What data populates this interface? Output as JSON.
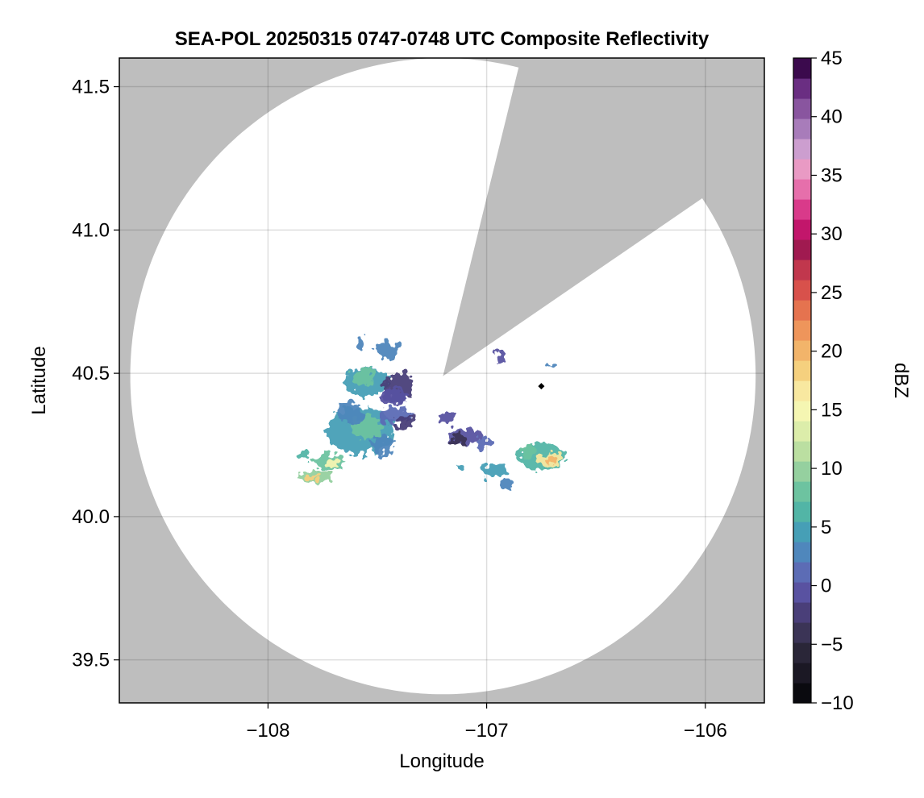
{
  "chart_data": {
    "type": "heatmap",
    "title": "SEA-POL 20250315 0747-0748 UTC Composite Reflectivity",
    "xlabel": "Longitude",
    "ylabel": "Latitude",
    "xlim": [
      -108.68,
      -105.73
    ],
    "ylim": [
      39.35,
      41.6
    ],
    "xticks": [
      -108,
      -107,
      -106
    ],
    "xtick_labels": [
      "−108",
      "−107",
      "−106"
    ],
    "yticks": [
      39.5,
      40.0,
      40.5,
      41.0,
      41.5
    ],
    "ytick_labels": [
      "39.5",
      "40.0",
      "40.5",
      "41.0",
      "41.5"
    ],
    "grid": true,
    "background_color": "#bebebe",
    "radar": {
      "center_lon": -107.2,
      "center_lat": 40.49,
      "range_lon_deg": 1.43,
      "range_lat_deg": 1.11,
      "blocked_sector_deg": [
        14,
        56
      ]
    },
    "marker": {
      "lon": -106.75,
      "lat": 40.455,
      "shape": "diamond",
      "color": "#000000"
    },
    "colorbar": {
      "label": "dBZ",
      "min": -10,
      "max": 45,
      "step": 2.5,
      "ticks": [
        -10,
        -5,
        0,
        5,
        10,
        15,
        20,
        25,
        30,
        35,
        40,
        45
      ],
      "tick_labels": [
        "−10",
        "−5",
        "0",
        "5",
        "10",
        "15",
        "20",
        "25",
        "30",
        "35",
        "40",
        "45"
      ],
      "colors": [
        "#0a0a0f",
        "#1b1824",
        "#2a2638",
        "#3b3456",
        "#4a3f79",
        "#5952a1",
        "#5c6cb5",
        "#4f87bc",
        "#469fb6",
        "#52b5a6",
        "#6dc3a0",
        "#95d09f",
        "#bbdfa1",
        "#dcedaa",
        "#f5f6b2",
        "#f8e8a0",
        "#f5d07e",
        "#f2b46a",
        "#ee955b",
        "#e5734f",
        "#d8514b",
        "#c1374d",
        "#a01a50",
        "#c2166b",
        "#d93a8a",
        "#e66fab",
        "#e99ac4",
        "#cc9ecf",
        "#a87cba",
        "#89559f",
        "#6a2e82",
        "#3b0a4d"
      ]
    },
    "cells": [
      {
        "lon": -107.55,
        "lat": 40.47,
        "rlon": 0.1,
        "rlat": 0.05,
        "dbz": 10
      },
      {
        "lon": -107.56,
        "lat": 40.49,
        "rlon": 0.05,
        "rlat": 0.03,
        "dbz": 15
      },
      {
        "lon": -107.4,
        "lat": 40.45,
        "rlon": 0.07,
        "rlat": 0.05,
        "dbz": 2
      },
      {
        "lon": -107.42,
        "lat": 40.42,
        "rlon": 0.06,
        "rlat": 0.03,
        "dbz": 4
      },
      {
        "lon": -107.58,
        "lat": 40.3,
        "rlon": 0.15,
        "rlat": 0.08,
        "dbz": 12
      },
      {
        "lon": -107.55,
        "lat": 40.31,
        "rlon": 0.07,
        "rlat": 0.04,
        "dbz": 16
      },
      {
        "lon": -107.62,
        "lat": 40.36,
        "rlon": 0.06,
        "rlat": 0.04,
        "dbz": 8
      },
      {
        "lon": -107.42,
        "lat": 40.35,
        "rlon": 0.08,
        "rlat": 0.03,
        "dbz": 5
      },
      {
        "lon": -107.38,
        "lat": 40.33,
        "rlon": 0.05,
        "rlat": 0.02,
        "dbz": 0
      },
      {
        "lon": -107.47,
        "lat": 40.25,
        "rlon": 0.05,
        "rlat": 0.04,
        "dbz": 9
      },
      {
        "lon": -107.45,
        "lat": 40.58,
        "rlon": 0.06,
        "rlat": 0.03,
        "dbz": 8
      },
      {
        "lon": -107.58,
        "lat": 40.61,
        "rlon": 0.02,
        "rlat": 0.02,
        "dbz": 9
      },
      {
        "lon": -107.72,
        "lat": 40.19,
        "rlon": 0.07,
        "rlat": 0.03,
        "dbz": 17
      },
      {
        "lon": -107.7,
        "lat": 40.19,
        "rlon": 0.03,
        "rlat": 0.015,
        "dbz": 27
      },
      {
        "lon": -107.78,
        "lat": 40.14,
        "rlon": 0.08,
        "rlat": 0.02,
        "dbz": 19
      },
      {
        "lon": -107.8,
        "lat": 40.14,
        "rlon": 0.025,
        "rlat": 0.01,
        "dbz": 30
      },
      {
        "lon": -107.83,
        "lat": 40.21,
        "rlon": 0.03,
        "rlat": 0.015,
        "dbz": 14
      },
      {
        "lon": -107.1,
        "lat": 40.28,
        "rlon": 0.07,
        "rlat": 0.03,
        "dbz": 3
      },
      {
        "lon": -107.12,
        "lat": 40.27,
        "rlon": 0.03,
        "rlat": 0.02,
        "dbz": -2
      },
      {
        "lon": -107.18,
        "lat": 40.34,
        "rlon": 0.04,
        "rlat": 0.015,
        "dbz": 4
      },
      {
        "lon": -107.01,
        "lat": 40.26,
        "rlon": 0.03,
        "rlat": 0.02,
        "dbz": 7
      },
      {
        "lon": -106.97,
        "lat": 40.16,
        "rlon": 0.07,
        "rlat": 0.02,
        "dbz": 11
      },
      {
        "lon": -106.75,
        "lat": 40.21,
        "rlon": 0.11,
        "rlat": 0.05,
        "dbz": 13
      },
      {
        "lon": -106.71,
        "lat": 40.2,
        "rlon": 0.06,
        "rlat": 0.02,
        "dbz": 28
      },
      {
        "lon": -106.7,
        "lat": 40.2,
        "rlon": 0.025,
        "rlat": 0.01,
        "dbz": 33
      },
      {
        "lon": -106.81,
        "lat": 40.23,
        "rlon": 0.03,
        "rlat": 0.02,
        "dbz": 16
      },
      {
        "lon": -106.94,
        "lat": 40.56,
        "rlon": 0.02,
        "rlat": 0.02,
        "dbz": 3
      },
      {
        "lon": -106.7,
        "lat": 40.53,
        "rlon": 0.02,
        "rlat": 0.01,
        "dbz": 8
      },
      {
        "lon": -106.9,
        "lat": 40.11,
        "rlon": 0.03,
        "rlat": 0.015,
        "dbz": 9
      },
      {
        "lon": -107.12,
        "lat": 40.17,
        "rlon": 0.025,
        "rlat": 0.015,
        "dbz": 12
      }
    ]
  }
}
